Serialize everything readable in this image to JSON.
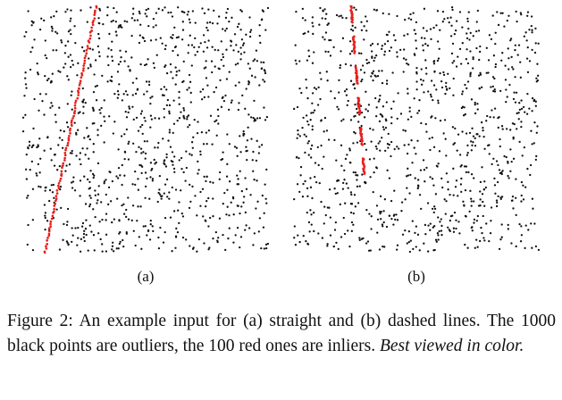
{
  "figure": {
    "subfigures": [
      {
        "label": "(a)",
        "kind": "straight",
        "outliers": 1000,
        "inliers": 100,
        "outlier_color": "#111111",
        "inlier_color": "#e8201c"
      },
      {
        "label": "(b)",
        "kind": "dashed",
        "outliers": 1000,
        "inliers": 100,
        "outlier_color": "#111111",
        "inlier_color": "#e8201c"
      }
    ],
    "caption": {
      "main": "Figure 2: An example input for (a) straight and (b) dashed lines. The 1000 black points are outliers, the 100 red ones are inliers.",
      "emphasis": "Best viewed in color."
    }
  }
}
